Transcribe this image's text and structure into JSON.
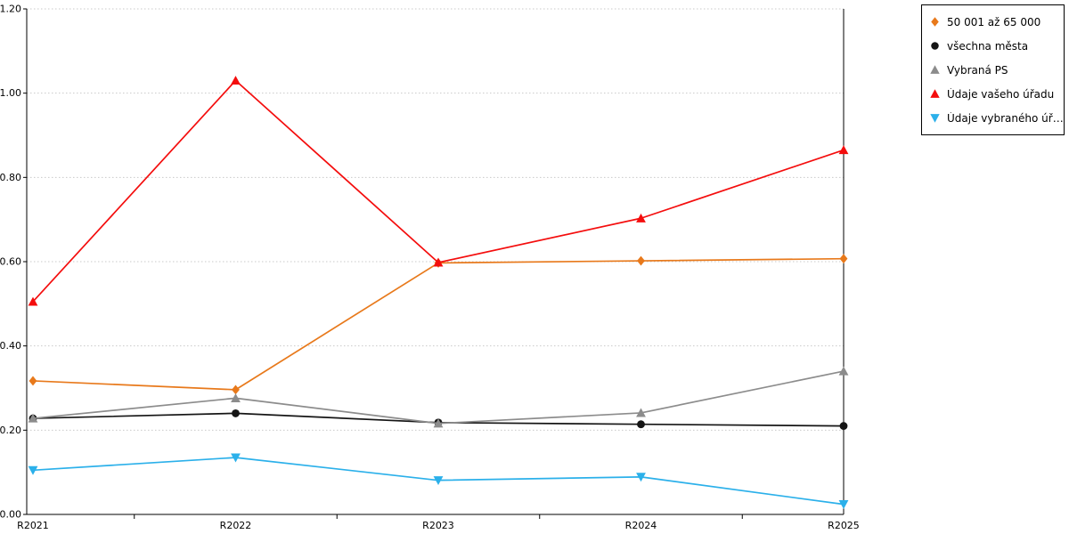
{
  "chart_data": {
    "type": "line",
    "title": "",
    "xlabel": "",
    "ylabel": "",
    "categories": [
      "R2021",
      "R2022",
      "R2023",
      "R2024",
      "R2025"
    ],
    "ylim": [
      0,
      1.2
    ],
    "y_ticks": [
      0,
      0.2,
      0.4,
      0.6,
      0.8,
      1.0,
      1.2
    ],
    "y_tick_labels": [
      "0.00",
      "0.20",
      "0.40",
      "0.60",
      "0.80",
      "1.00",
      "1.20"
    ],
    "grid": "horizontal-dotted",
    "grid_color": "#c9c9c9",
    "axis_color": "#000000",
    "legend_position": "top-right-outside",
    "series": [
      {
        "name": "50 001 až 65 000",
        "color": "#e8791b",
        "marker": "diamond",
        "values": [
          0.317,
          0.296,
          0.597,
          0.602,
          0.607
        ]
      },
      {
        "name": "všechna města",
        "color": "#151515",
        "marker": "circle",
        "values": [
          0.228,
          0.24,
          0.218,
          0.214,
          0.21
        ]
      },
      {
        "name": "Vybraná PS",
        "color": "#8c8c8c",
        "marker": "triangle-up",
        "values": [
          0.228,
          0.276,
          0.216,
          0.241,
          0.34
        ]
      },
      {
        "name": "Údaje vašeho úřadu",
        "color": "#f40d0d",
        "marker": "triangle-up",
        "values": [
          0.505,
          1.03,
          0.598,
          0.703,
          0.865
        ]
      },
      {
        "name": "Údaje vybraného úřadu",
        "color": "#2bb0ea",
        "marker": "triangle-down",
        "values": [
          0.105,
          0.135,
          0.081,
          0.089,
          0.024
        ]
      }
    ]
  }
}
